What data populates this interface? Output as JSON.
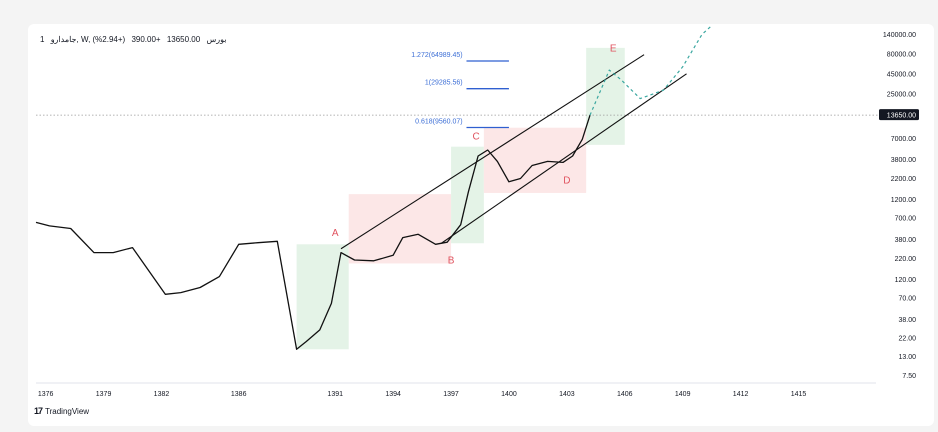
{
  "header": {
    "symbol": "جامدارو, W, بورس",
    "interval_suffix": "1",
    "close": "13650.00",
    "change": "+390.00",
    "change_pct": "(+2.94%)"
  },
  "brand": {
    "name": "TradingView",
    "logo_text": "17"
  },
  "colors": {
    "price_line": "#111111",
    "channel": "#111111",
    "projection": "#3aa7a0",
    "wave_label": "#e0535f",
    "fib_line": "#2f5fd0",
    "box_green": "#dff1e3",
    "box_red": "#fbe3e3",
    "last_price_bg": "#131722"
  },
  "chart_data": {
    "type": "line",
    "scale": "log",
    "title": "",
    "xlabel": "",
    "ylabel": "",
    "x_ticks": [
      "1376",
      "1379",
      "1382",
      "1386",
      "1391",
      "1394",
      "1397",
      "1400",
      "1403",
      "1406",
      "1409",
      "1412",
      "1415"
    ],
    "y_ticks": [
      "140000.00",
      "80000.00",
      "45000.00",
      "25000.00",
      "7000.00",
      "3800.00",
      "2200.00",
      "1200.00",
      "700.00",
      "380.00",
      "220.00",
      "120.00",
      "70.00",
      "38.00",
      "22.00",
      "13.00",
      "7.50"
    ],
    "last_price": "13650.00",
    "series": [
      {
        "values_note": "",
        "points": [
          [
            1375.5,
            620
          ],
          [
            1376.2,
            560
          ],
          [
            1377.3,
            520
          ],
          [
            1378.5,
            260
          ],
          [
            1379.5,
            260
          ],
          [
            1380.5,
            300
          ],
          [
            1382.2,
            78
          ],
          [
            1383.0,
            82
          ],
          [
            1384.0,
            95
          ],
          [
            1385.0,
            130
          ],
          [
            1386.0,
            330
          ],
          [
            1387.0,
            345
          ],
          [
            1388.0,
            360
          ],
          [
            1389.0,
            16
          ],
          [
            1389.5,
            20
          ],
          [
            1390.2,
            28
          ],
          [
            1390.8,
            60
          ],
          [
            1391.3,
            260
          ],
          [
            1392.0,
            210
          ],
          [
            1393.0,
            205
          ],
          [
            1394.0,
            240
          ],
          [
            1394.5,
            400
          ],
          [
            1395.3,
            440
          ],
          [
            1396.2,
            330
          ],
          [
            1396.8,
            350
          ],
          [
            1397.5,
            580
          ],
          [
            1397.9,
            1500
          ],
          [
            1398.4,
            4200
          ],
          [
            1398.9,
            5000
          ],
          [
            1399.4,
            3600
          ],
          [
            1400.0,
            2000
          ],
          [
            1400.6,
            2200
          ],
          [
            1401.2,
            3200
          ],
          [
            1402.0,
            3600
          ],
          [
            1402.8,
            3500
          ],
          [
            1403.3,
            4200
          ],
          [
            1403.8,
            6800
          ],
          [
            1404.2,
            13650
          ]
        ]
      },
      {
        "name": "",
        "style": "dashed",
        "points": [
          [
            1404.2,
            13650
          ],
          [
            1405.2,
            50000
          ],
          [
            1405.8,
            38000
          ],
          [
            1406.8,
            22000
          ],
          [
            1408.0,
            28000
          ],
          [
            1409.0,
            55000
          ],
          [
            1410.0,
            140000
          ],
          [
            1410.5,
            180000
          ]
        ]
      }
    ],
    "channel_lines": [
      {
        "from": [
          1391.3,
          290
        ],
        "to": [
          1407.0,
          78000
        ]
      },
      {
        "from": [
          1396.5,
          340
        ],
        "to": [
          1409.2,
          45000
        ]
      }
    ],
    "wave_labels": [
      {
        "label": "A",
        "x": 1391.0,
        "y": 420
      },
      {
        "label": "B",
        "x": 1397.0,
        "y": 190
      },
      {
        "label": "C",
        "x": 1398.3,
        "y": 6800
      },
      {
        "label": "D",
        "x": 1403.0,
        "y": 1900
      },
      {
        "label": "E",
        "x": 1405.4,
        "y": 85000
      }
    ],
    "fib_levels": [
      {
        "label": "1.272(64989.45)",
        "value": 64989.45
      },
      {
        "label": "1(29285.56)",
        "value": 29285.56
      },
      {
        "label": "0.618(9560.07)",
        "value": 9560.07
      }
    ],
    "boxes": [
      {
        "color": "green",
        "x": [
          1389.0,
          1391.7
        ],
        "y": [
          16,
          330
        ]
      },
      {
        "color": "red",
        "x": [
          1391.7,
          1397.0
        ],
        "y": [
          190,
          1400
        ]
      },
      {
        "color": "green",
        "x": [
          1397.0,
          1398.7
        ],
        "y": [
          340,
          5500
        ]
      },
      {
        "color": "red",
        "x": [
          1398.7,
          1404.0
        ],
        "y": [
          1450,
          9500
        ]
      },
      {
        "color": "green",
        "x": [
          1404.0,
          1406.0
        ],
        "y": [
          5800,
          95000
        ]
      }
    ],
    "grid": false,
    "legend": "none"
  }
}
